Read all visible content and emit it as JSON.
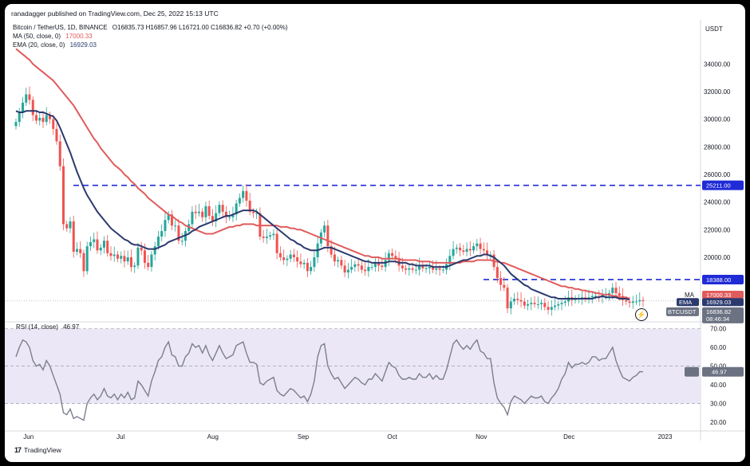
{
  "header": {
    "text": "ranadagger published on TradingView.com, Dec 25, 2022 15:13 UTC"
  },
  "legend": {
    "symbol": "Bitcoin / TetherUS, 1D, BINANCE",
    "ohlc": "O16835.73 H16857.96 L16721.00 C16836.82 +0.70 (+0.00%)",
    "ma_label": "MA (50, close, 0)",
    "ma_value": "17000.33",
    "ema_label": "EMA (20, close, 0)",
    "ema_value": "16929.03",
    "rsi_label": "RSI (14, close)",
    "rsi_value": "46.97"
  },
  "currency": "USDT",
  "brand": {
    "logo": "17",
    "name": "TradingView"
  },
  "icons": {
    "bolt": "lightning-icon"
  },
  "colors": {
    "ma": "#e05c5c",
    "ema": "#2b3a6e",
    "rsi": "#7b7f8c",
    "up": "#26a69a",
    "down": "#ef5350",
    "level": "#1f2bd6",
    "rsi_band": "#ece7f6"
  },
  "chart_data": [
    {
      "type": "candlestick",
      "title": "Bitcoin / TetherUS, 1D, BINANCE",
      "x_ticks": [
        "Jun",
        "Jul",
        "Aug",
        "Sep",
        "Oct",
        "Nov",
        "Dec",
        "2023"
      ],
      "y_ticks": [
        "34000.00",
        "32000.00",
        "30000.00",
        "28000.00",
        "26000.00",
        "24000.00",
        "22000.00",
        "20000.00"
      ],
      "ylim": [
        15500,
        36500
      ],
      "grid": false,
      "levels": [
        {
          "value": 25211,
          "label": "25211.00"
        },
        {
          "value": 18388,
          "label": "18388.00"
        }
      ],
      "price_tags": [
        {
          "name": "MA",
          "label": "17000.33",
          "value": 17000.33
        },
        {
          "name": "EMA",
          "label": "16929.03",
          "value": 16929.03
        },
        {
          "name": "BTCUSDT",
          "label": "16836.82",
          "value": 16836.82
        },
        {
          "name": "countdown",
          "label": "08:46:34"
        }
      ],
      "close": [
        29800,
        30500,
        31200,
        31800,
        31400,
        30300,
        29900,
        30100,
        29800,
        30300,
        30000,
        29300,
        28400,
        26600,
        22400,
        22100,
        22600,
        20400,
        20600,
        20300,
        19000,
        20800,
        21100,
        21300,
        20500,
        20700,
        21200,
        20300,
        20100,
        20200,
        19900,
        20100,
        19700,
        20000,
        19300,
        19400,
        20700,
        20500,
        19600,
        19300,
        20200,
        20800,
        21500,
        21900,
        22700,
        23100,
        22300,
        22300,
        21200,
        21200,
        21900,
        22400,
        23300,
        23200,
        23300,
        22900,
        23700,
        23000,
        22600,
        23200,
        23800,
        23300,
        22900,
        22900,
        23100,
        23900,
        24300,
        24800,
        24100,
        23300,
        23200,
        23200,
        21500,
        21400,
        21500,
        21600,
        21700,
        20300,
        20000,
        19800,
        19900,
        20200,
        20000,
        19700,
        19500,
        19600,
        19000,
        19300,
        20000,
        21000,
        21800,
        22300,
        20800,
        20200,
        19700,
        19800,
        19400,
        18900,
        19100,
        19300,
        19500,
        19400,
        19100,
        19000,
        19300,
        19300,
        19600,
        19400,
        19300,
        19800,
        20300,
        20100,
        19900,
        19400,
        19200,
        19100,
        19200,
        19100,
        19100,
        19400,
        19200,
        19200,
        19300,
        19100,
        19200,
        19100,
        19100,
        19500,
        20100,
        20600,
        20700,
        20500,
        20400,
        20600,
        20500,
        20800,
        21000,
        20600,
        20500,
        20200,
        20200,
        19300,
        18500,
        18000,
        17800,
        16300,
        16800,
        17000,
        16900,
        16800,
        16500,
        16600,
        16700,
        16600,
        16600,
        16700,
        16400,
        16200,
        16400,
        16500,
        16600,
        16700,
        16800,
        17100,
        16900,
        17000,
        17000,
        17100,
        17000,
        17100,
        17200,
        17200,
        17100,
        17200,
        17200,
        17400,
        17800,
        17400,
        17200,
        16900,
        16800,
        16700,
        16800,
        16800,
        16900,
        16840
      ],
      "ma50": [
        35100,
        34900,
        34700,
        34500,
        34300,
        34000,
        33800,
        33600,
        33400,
        33200,
        33000,
        32800,
        32500,
        32200,
        31900,
        31600,
        31300,
        31000,
        30600,
        30200,
        29800,
        29400,
        29000,
        28600,
        28300,
        27900,
        27600,
        27300,
        27000,
        26700,
        26500,
        26300,
        26000,
        25800,
        25500,
        25300,
        25000,
        24800,
        24600,
        24300,
        24100,
        23900,
        23700,
        23500,
        23300,
        23100,
        23000,
        22800,
        22600,
        22500,
        22300,
        22200,
        22100,
        22000,
        21900,
        21800,
        21700,
        21700,
        21700,
        21800,
        21900,
        22000,
        22100,
        22200,
        22200,
        22300,
        22300,
        22400,
        22400,
        22400,
        22400,
        22300,
        22300,
        22300,
        22300,
        22300,
        22300,
        22300,
        22200,
        22200,
        22200,
        22100,
        22100,
        22000,
        22000,
        21900,
        21800,
        21700,
        21600,
        21500,
        21400,
        21300,
        21200,
        21100,
        21000,
        20900,
        20800,
        20700,
        20600,
        20500,
        20400,
        20300,
        20200,
        20100,
        20100,
        20000,
        20000,
        20000,
        19900,
        19900,
        19900,
        19900,
        19900,
        19900,
        19800,
        19800,
        19800,
        19800,
        19800,
        19700,
        19700,
        19700,
        19700,
        19600,
        19600,
        19600,
        19600,
        19600,
        19600,
        19600,
        19600,
        19600,
        19700,
        19700,
        19700,
        19700,
        19800,
        19800,
        19800,
        19800,
        19800,
        19700,
        19700,
        19600,
        19600,
        19500,
        19400,
        19300,
        19200,
        19100,
        19000,
        18900,
        18800,
        18700,
        18600,
        18500,
        18400,
        18300,
        18200,
        18100,
        18000,
        17900,
        17900,
        17800,
        17800,
        17700,
        17700,
        17600,
        17600,
        17500,
        17500,
        17400,
        17400,
        17300,
        17300,
        17300,
        17200,
        17200,
        17100,
        17100,
        17100,
        17000
      ],
      "ema20": [
        30600,
        30500,
        30500,
        30600,
        30600,
        30600,
        30600,
        30500,
        30500,
        30400,
        30300,
        30200,
        29900,
        29400,
        28800,
        28200,
        27600,
        26900,
        26200,
        25600,
        25000,
        24500,
        24100,
        23700,
        23300,
        23000,
        22700,
        22400,
        22100,
        21900,
        21700,
        21500,
        21300,
        21200,
        21000,
        20900,
        20900,
        20800,
        20700,
        20600,
        20600,
        20600,
        20700,
        20800,
        20900,
        21100,
        21200,
        21300,
        21400,
        21500,
        21600,
        21700,
        21900,
        22000,
        22200,
        22300,
        22400,
        22500,
        22600,
        22700,
        22800,
        22900,
        23000,
        23000,
        23100,
        23200,
        23300,
        23400,
        23400,
        23400,
        23400,
        23300,
        23100,
        22900,
        22700,
        22500,
        22300,
        22100,
        21900,
        21700,
        21500,
        21300,
        21200,
        21000,
        20900,
        20700,
        20600,
        20500,
        20500,
        20500,
        20600,
        20700,
        20700,
        20700,
        20600,
        20500,
        20400,
        20300,
        20200,
        20100,
        20000,
        19900,
        19800,
        19700,
        19700,
        19600,
        19600,
        19600,
        19600,
        19600,
        19700,
        19700,
        19700,
        19600,
        19600,
        19600,
        19500,
        19500,
        19400,
        19400,
        19400,
        19400,
        19400,
        19300,
        19300,
        19300,
        19300,
        19300,
        19400,
        19500,
        19600,
        19700,
        19800,
        19800,
        19900,
        20000,
        20100,
        20100,
        20200,
        20200,
        20100,
        20000,
        19800,
        19600,
        19400,
        19100,
        18800,
        18600,
        18400,
        18200,
        18000,
        17900,
        17700,
        17600,
        17500,
        17400,
        17300,
        17200,
        17100,
        17100,
        17000,
        17000,
        17000,
        17000,
        17000,
        17000,
        17000,
        17000,
        17000,
        17000,
        17000,
        17100,
        17100,
        17200,
        17100,
        17100,
        17100,
        17100,
        17000,
        17000,
        17000,
        16930
      ]
    },
    {
      "type": "line",
      "title": "RSI (14, close)",
      "y_ticks": [
        "70.00",
        "60.00",
        "50.00",
        "40.00",
        "30.00",
        "20.00"
      ],
      "ylim": [
        17,
        72
      ],
      "band": [
        30,
        70
      ],
      "values": [
        55,
        60,
        64,
        63,
        60,
        53,
        50,
        51,
        48,
        53,
        50,
        45,
        40,
        35,
        25,
        24,
        27,
        22,
        23,
        22,
        21,
        30,
        33,
        35,
        32,
        34,
        38,
        34,
        33,
        35,
        32,
        35,
        33,
        36,
        32,
        33,
        42,
        40,
        37,
        34,
        42,
        47,
        53,
        55,
        60,
        63,
        56,
        55,
        50,
        50,
        55,
        57,
        62,
        60,
        61,
        57,
        61,
        56,
        53,
        57,
        61,
        57,
        54,
        55,
        56,
        61,
        62,
        63,
        57,
        52,
        52,
        51,
        41,
        40,
        42,
        43,
        44,
        37,
        35,
        34,
        36,
        38,
        37,
        35,
        33,
        34,
        31,
        35,
        42,
        55,
        61,
        62,
        50,
        46,
        43,
        44,
        41,
        38,
        40,
        42,
        44,
        43,
        41,
        40,
        43,
        43,
        46,
        44,
        42,
        47,
        52,
        50,
        49,
        45,
        43,
        43,
        44,
        43,
        43,
        46,
        44,
        44,
        46,
        43,
        45,
        43,
        43,
        48,
        55,
        62,
        64,
        61,
        59,
        61,
        59,
        62,
        64,
        58,
        57,
        54,
        54,
        41,
        33,
        30,
        28,
        24,
        31,
        34,
        33,
        32,
        30,
        32,
        34,
        33,
        33,
        34,
        31,
        30,
        33,
        35,
        38,
        43,
        46,
        52,
        49,
        51,
        51,
        52,
        51,
        52,
        55,
        55,
        53,
        54,
        54,
        57,
        60,
        53,
        48,
        44,
        43,
        42,
        44,
        45,
        47,
        46.97
      ]
    }
  ]
}
